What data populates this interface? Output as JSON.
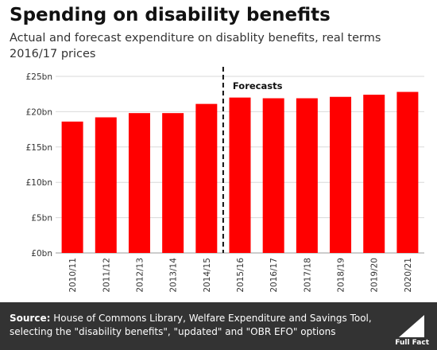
{
  "title": "Spending on disability benefits",
  "subtitle_line1": "Actual and forecast expenditure on disablity benefits, real terms",
  "subtitle_line2": "2016/17 prices",
  "source_label": "Source:",
  "source_text": "House of Commons Library, Welfare Expenditure and Savings Tool, selecting the \"disability benefits\", \"updated\" and \"OBR EFO\" options",
  "logo_text": "Full Fact",
  "colors": {
    "bar": "#ff0000",
    "footer": "#333333",
    "grid": "#d9d9d9"
  },
  "chart_data": {
    "type": "bar",
    "categories": [
      "2010/11",
      "2011/12",
      "2012/13",
      "2013/14",
      "2014/15",
      "2015/16",
      "2016/17",
      "2017/18",
      "2018/19",
      "2019/20",
      "2020/21"
    ],
    "values": [
      18.6,
      19.2,
      19.8,
      19.8,
      21.1,
      22.0,
      21.9,
      21.9,
      22.1,
      22.4,
      22.8
    ],
    "unit": "£bn",
    "ylim": [
      0,
      25
    ],
    "y_ticks": [
      0,
      5,
      10,
      15,
      20,
      25
    ],
    "y_tick_labels": [
      "£0bn",
      "£5bn",
      "£10bn",
      "£15bn",
      "£20bn",
      "£25bn"
    ],
    "grid": true,
    "forecast_start": "2015/16",
    "annotation": "Forecasts"
  }
}
